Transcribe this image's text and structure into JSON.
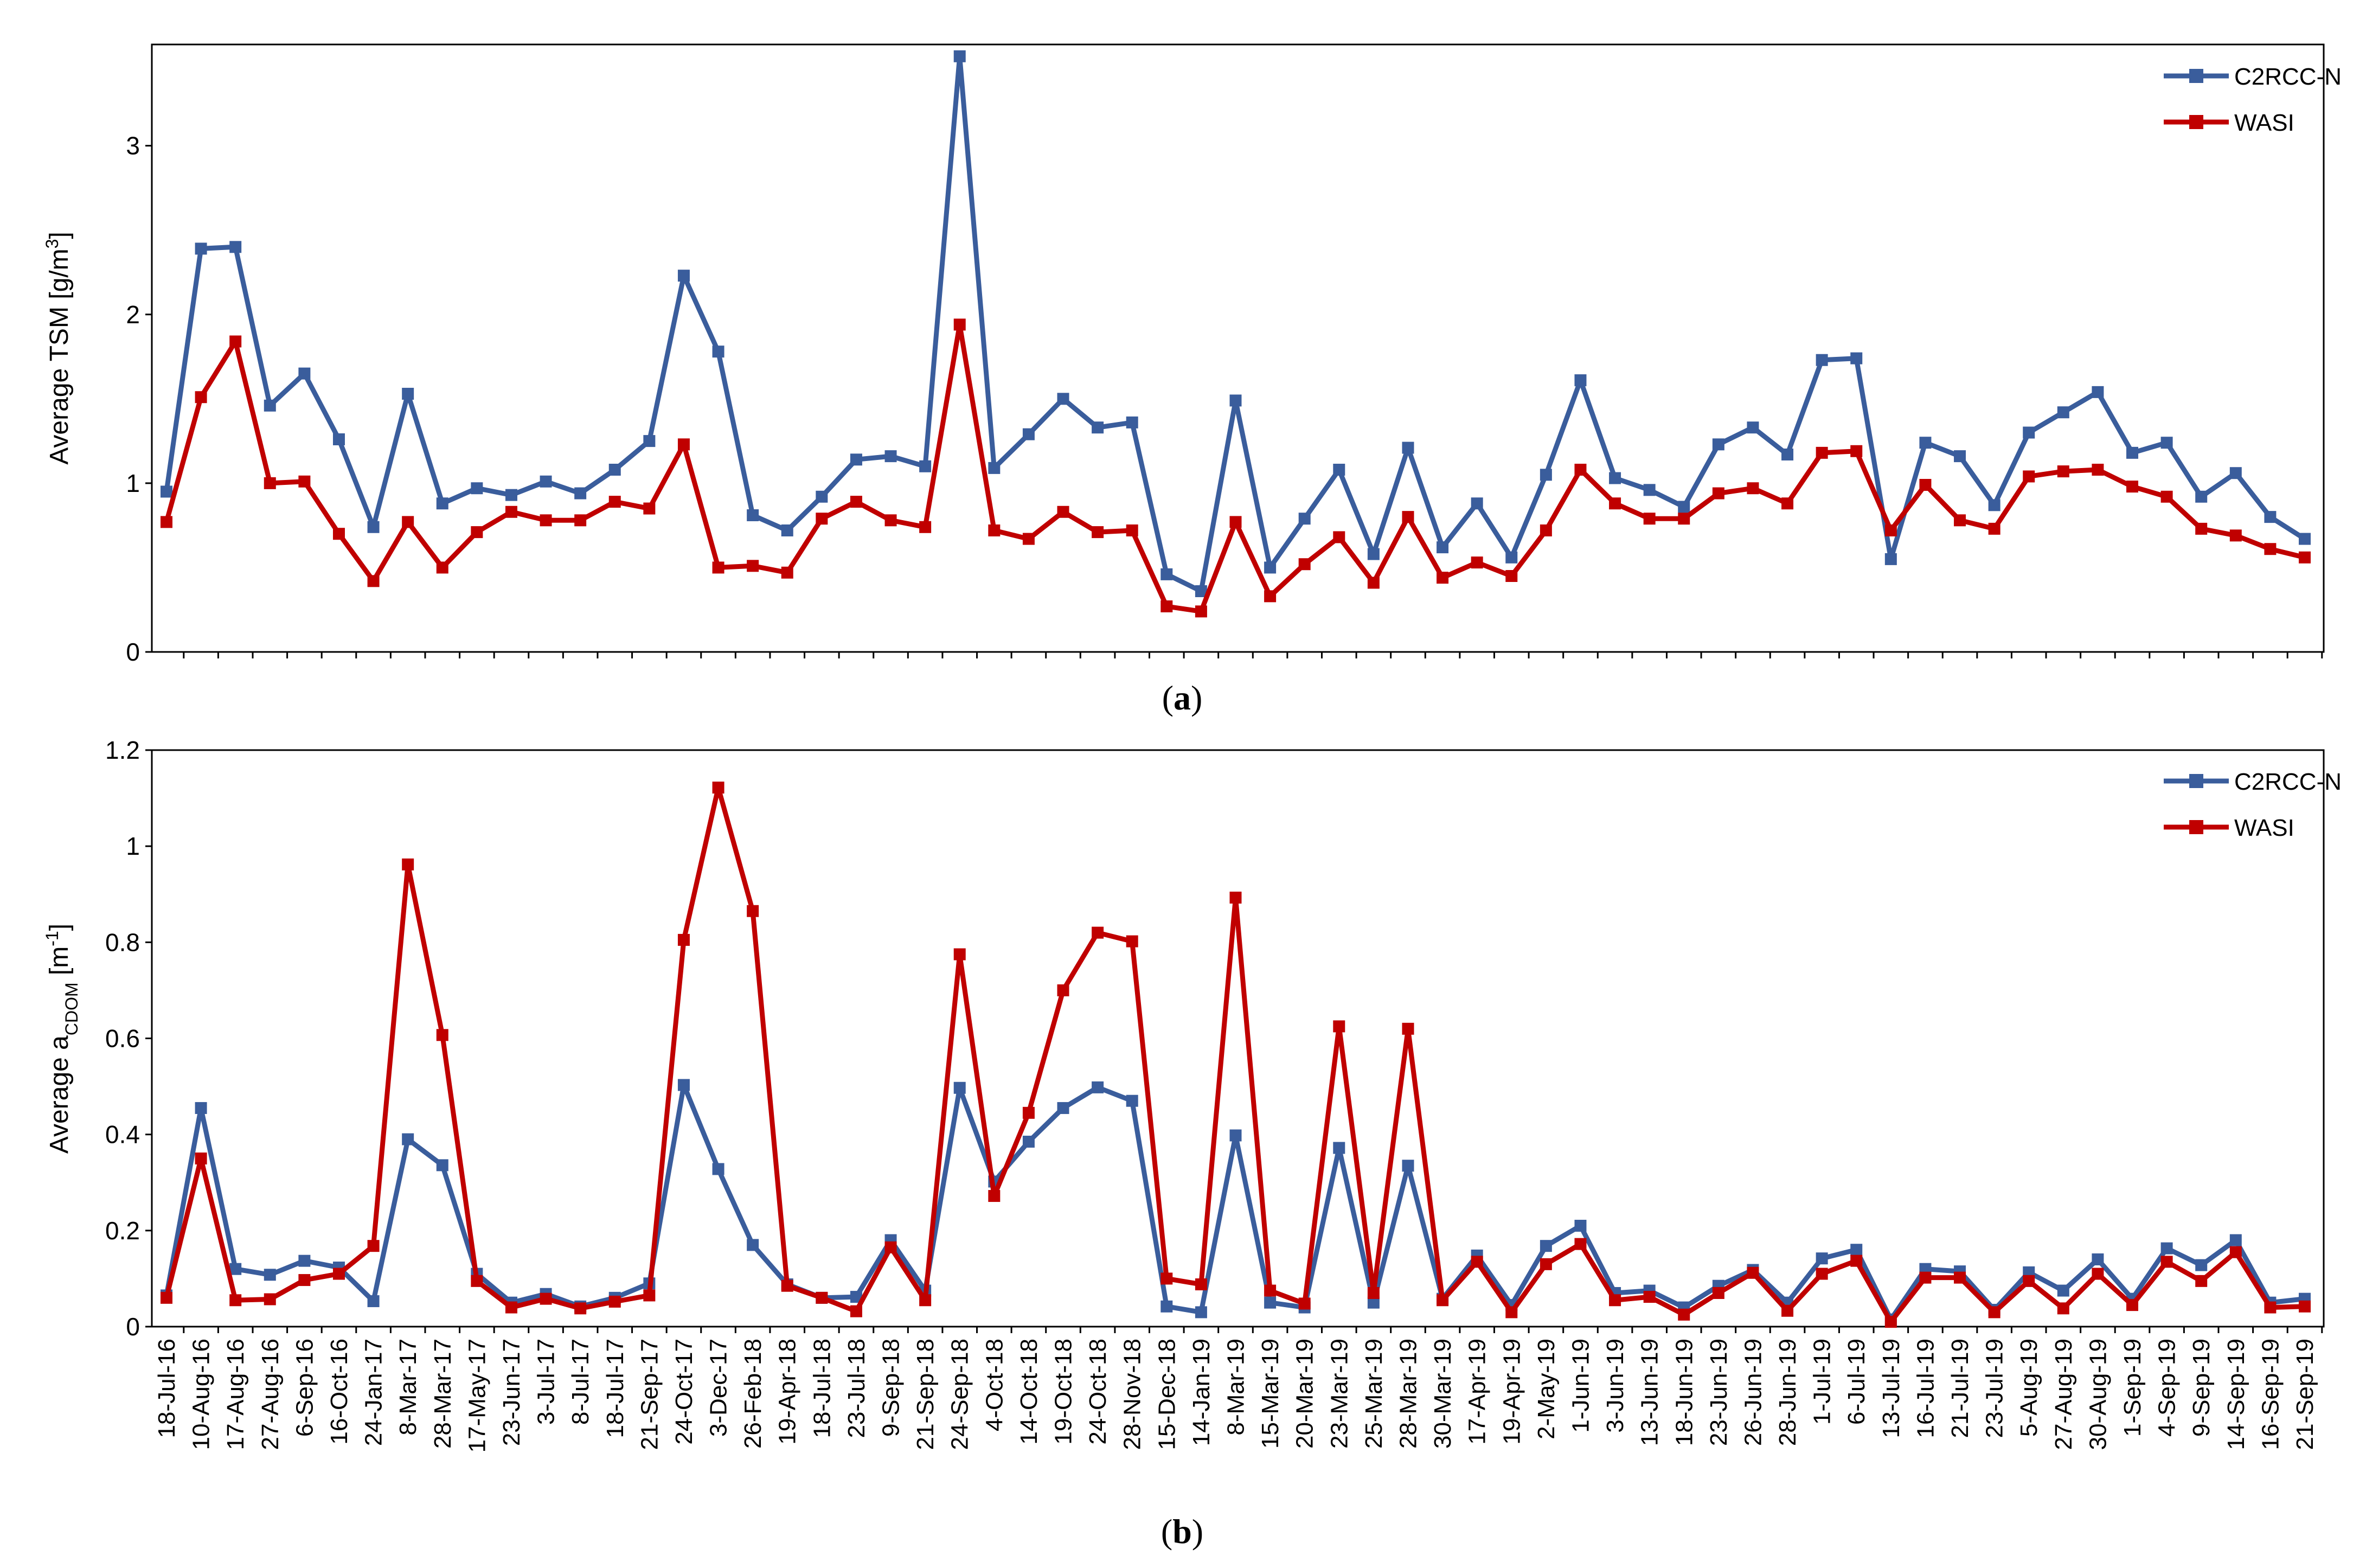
{
  "chart_data": [
    {
      "type": "line",
      "panel_label": "a",
      "title": "",
      "xlabel": "",
      "ylabel_main": "Average TSM [g/m",
      "ylabel_sup": "3",
      "ylabel_tail": "]",
      "ylim": [
        0,
        3.6
      ],
      "yticks": [
        0,
        1,
        2,
        3
      ],
      "ytick_labels": [
        "0",
        "1",
        "2",
        "3"
      ],
      "legend_position": "top-right",
      "series": [
        {
          "name": "C2RCC-N",
          "color": "#3a5d9c",
          "values": [
            0.95,
            2.39,
            2.4,
            1.46,
            1.65,
            1.26,
            0.74,
            1.53,
            0.88,
            0.97,
            0.93,
            1.01,
            0.94,
            1.08,
            1.25,
            2.23,
            1.78,
            0.81,
            0.72,
            0.92,
            1.14,
            1.16,
            1.1,
            3.53,
            1.09,
            1.29,
            1.5,
            1.33,
            1.36,
            0.46,
            0.36,
            1.49,
            0.5,
            0.79,
            1.08,
            0.58,
            1.21,
            0.62,
            0.88,
            0.56,
            1.05,
            1.61,
            1.03,
            0.96,
            0.86,
            1.23,
            1.33,
            1.17,
            1.73,
            1.74,
            0.55,
            1.24,
            1.16,
            0.87,
            1.3,
            1.42,
            1.54,
            1.18,
            1.24,
            0.92,
            1.06,
            0.8,
            0.67
          ]
        },
        {
          "name": "WASI",
          "color": "#c00000",
          "values": [
            0.77,
            1.51,
            1.84,
            1.0,
            1.01,
            0.7,
            0.42,
            0.77,
            0.5,
            0.71,
            0.83,
            0.78,
            0.78,
            0.89,
            0.85,
            1.23,
            0.5,
            0.51,
            0.47,
            0.79,
            0.89,
            0.78,
            0.74,
            1.94,
            0.72,
            0.67,
            0.83,
            0.71,
            0.72,
            0.27,
            0.24,
            0.77,
            0.33,
            0.52,
            0.68,
            0.41,
            0.8,
            0.44,
            0.53,
            0.45,
            0.72,
            1.08,
            0.88,
            0.79,
            0.79,
            0.94,
            0.97,
            0.88,
            1.18,
            1.19,
            0.72,
            0.99,
            0.78,
            0.73,
            1.04,
            1.07,
            1.08,
            0.98,
            0.92,
            0.73,
            0.69,
            0.61,
            0.56
          ]
        }
      ]
    },
    {
      "type": "line",
      "panel_label": "b",
      "title": "",
      "xlabel": "",
      "ylabel_main": "Average a",
      "ylabel_sub": "CDOM",
      "ylabel_unit": " [m",
      "ylabel_sup": "-1",
      "ylabel_tail": "]",
      "ylim": [
        0,
        1.2
      ],
      "yticks": [
        0,
        0.2,
        0.4,
        0.6,
        0.8,
        1.0,
        1.2
      ],
      "ytick_labels": [
        "0",
        "0.2",
        "0.4",
        "0.6",
        "0.8",
        "1",
        "1.2"
      ],
      "legend_position": "top-right",
      "categories": [
        "18-Jul-16",
        "10-Aug-16",
        "17-Aug-16",
        "27-Aug-16",
        "6-Sep-16",
        "16-Oct-16",
        "24-Jan-17",
        "8-Mar-17",
        "28-Mar-17",
        "17-May-17",
        "23-Jun-17",
        "3-Jul-17",
        "8-Jul-17",
        "18-Jul-17",
        "21-Sep-17",
        "24-Oct-17",
        "3-Dec-17",
        "26-Feb-18",
        "19-Apr-18",
        "18-Jul-18",
        "23-Jul-18",
        "9-Sep-18",
        "21-Sep-18",
        "24-Sep-18",
        "4-Oct-18",
        "14-Oct-18",
        "19-Oct-18",
        "24-Oct-18",
        "28-Nov-18",
        "15-Dec-18",
        "14-Jan-19",
        "8-Mar-19",
        "15-Mar-19",
        "20-Mar-19",
        "23-Mar-19",
        "25-Mar-19",
        "28-Mar-19",
        "30-Mar-19",
        "17-Apr-19",
        "19-Apr-19",
        "2-May-19",
        "1-Jun-19",
        "3-Jun-19",
        "13-Jun-19",
        "18-Jun-19",
        "23-Jun-19",
        "26-Jun-19",
        "28-Jun-19",
        "1-Jul-19",
        "6-Jul-19",
        "13-Jul-19",
        "16-Jul-19",
        "21-Jul-19",
        "23-Jul-19",
        "5-Aug-19",
        "27-Aug-19",
        "30-Aug-19",
        "1-Sep-19",
        "4-Sep-19",
        "9-Sep-19",
        "14-Sep-19",
        "16-Sep-19",
        "21-Sep-19"
      ],
      "series": [
        {
          "name": "C2RCC-N",
          "color": "#3a5d9c",
          "values": [
            0.065,
            0.455,
            0.12,
            0.108,
            0.137,
            0.123,
            0.053,
            0.39,
            0.336,
            0.11,
            0.05,
            0.068,
            0.042,
            0.06,
            0.09,
            0.503,
            0.328,
            0.17,
            0.088,
            0.06,
            0.062,
            0.18,
            0.075,
            0.497,
            0.302,
            0.385,
            0.455,
            0.498,
            0.47,
            0.042,
            0.03,
            0.398,
            0.05,
            0.04,
            0.372,
            0.05,
            0.335,
            0.058,
            0.148,
            0.045,
            0.168,
            0.21,
            0.07,
            0.075,
            0.04,
            0.085,
            0.118,
            0.05,
            0.142,
            0.16,
            0.015,
            0.12,
            0.115,
            0.035,
            0.113,
            0.075,
            0.14,
            0.058,
            0.163,
            0.128,
            0.18,
            0.05,
            0.058
          ]
        },
        {
          "name": "WASI",
          "color": "#c00000",
          "values": [
            0.06,
            0.35,
            0.055,
            0.057,
            0.097,
            0.11,
            0.168,
            0.962,
            0.607,
            0.095,
            0.04,
            0.058,
            0.038,
            0.052,
            0.065,
            0.805,
            1.122,
            0.865,
            0.085,
            0.06,
            0.032,
            0.165,
            0.055,
            0.775,
            0.272,
            0.445,
            0.7,
            0.82,
            0.802,
            0.1,
            0.088,
            0.893,
            0.075,
            0.048,
            0.625,
            0.07,
            0.62,
            0.055,
            0.135,
            0.03,
            0.13,
            0.172,
            0.055,
            0.062,
            0.025,
            0.07,
            0.112,
            0.033,
            0.11,
            0.137,
            0.01,
            0.102,
            0.102,
            0.03,
            0.095,
            0.038,
            0.11,
            0.045,
            0.135,
            0.095,
            0.155,
            0.04,
            0.042
          ]
        }
      ]
    }
  ]
}
